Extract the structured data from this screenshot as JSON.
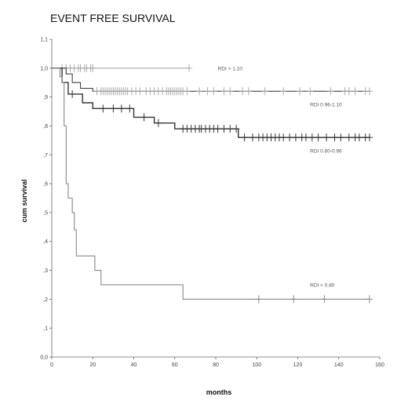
{
  "chart_data": {
    "type": "line",
    "title": "EVENT FREE SURVIVAL",
    "xlabel": "months",
    "ylabel": "cum survival",
    "xlim": [
      0,
      160
    ],
    "ylim": [
      0,
      1.1
    ],
    "x_ticks": [
      0,
      20,
      40,
      60,
      80,
      100,
      120,
      140,
      160
    ],
    "x_tick_labels": [
      "0",
      "20",
      "40",
      "60",
      "80",
      "100",
      "120",
      "140",
      "160"
    ],
    "y_ticks": [
      0,
      0.1,
      0.2,
      0.3,
      0.4,
      0.5,
      0.6,
      0.7,
      0.8,
      0.9,
      1.0,
      1.1
    ],
    "y_tick_labels": [
      "0,0",
      ",1",
      ",2",
      ",3",
      ",4",
      ",5",
      ",6",
      ",7",
      ",8",
      ",9",
      "1,0",
      "1,1"
    ],
    "grid": false,
    "series": [
      {
        "name": "RDI > 1.10",
        "color": "#aaaaaa",
        "steps": [
          [
            0,
            1.0
          ],
          [
            67,
            1.0
          ]
        ],
        "censored": [
          5,
          7,
          9,
          11,
          13,
          14,
          16,
          17,
          19,
          20,
          67
        ]
      },
      {
        "name": "RDI 0.96-1.10",
        "color": "#444444",
        "steps": [
          [
            0,
            1.0
          ],
          [
            7,
            1.0
          ],
          [
            7,
            0.98
          ],
          [
            10,
            0.98
          ],
          [
            10,
            0.95
          ],
          [
            14,
            0.95
          ],
          [
            14,
            0.93
          ],
          [
            20,
            0.93
          ],
          [
            20,
            0.92
          ],
          [
            155,
            0.92
          ]
        ],
        "censored": [
          22,
          24,
          25,
          26,
          27,
          28,
          29,
          30,
          31,
          32,
          33,
          34,
          35,
          36,
          37,
          39,
          41,
          43,
          46,
          48,
          50,
          52,
          54,
          56,
          57,
          58,
          59,
          60,
          61,
          62,
          63,
          64,
          66,
          72,
          76,
          79,
          84,
          87,
          93,
          96,
          104,
          113,
          121,
          126,
          136,
          143,
          145,
          148,
          153,
          155
        ],
        "censored_color": "#aaaaaa"
      },
      {
        "name": "RDI 0.80-0.96",
        "color": "#333333",
        "steps": [
          [
            0,
            1.0
          ],
          [
            5,
            1.0
          ],
          [
            5,
            0.95
          ],
          [
            8,
            0.95
          ],
          [
            8,
            0.91
          ],
          [
            15,
            0.91
          ],
          [
            15,
            0.88
          ],
          [
            20,
            0.88
          ],
          [
            20,
            0.86
          ],
          [
            40,
            0.86
          ],
          [
            40,
            0.83
          ],
          [
            50,
            0.83
          ],
          [
            50,
            0.81
          ],
          [
            60,
            0.81
          ],
          [
            60,
            0.79
          ],
          [
            91,
            0.79
          ],
          [
            91,
            0.76
          ],
          [
            155,
            0.76
          ]
        ],
        "censored": [
          10,
          25,
          30,
          34,
          38,
          45,
          52,
          64,
          66,
          68,
          70,
          72,
          73,
          75,
          77,
          79,
          81,
          84,
          87,
          90,
          94,
          98,
          101,
          103,
          105,
          107,
          109,
          111,
          113,
          116,
          119,
          122,
          124,
          127,
          130,
          134,
          138,
          141,
          145,
          148,
          150,
          153,
          155
        ]
      },
      {
        "name": "RDI < 0.80",
        "color": "#888888",
        "steps": [
          [
            0,
            1.0
          ],
          [
            4,
            1.0
          ],
          [
            4,
            0.97
          ],
          [
            5,
            0.97
          ],
          [
            5,
            0.95
          ],
          [
            6,
            0.95
          ],
          [
            6,
            0.8
          ],
          [
            7,
            0.8
          ],
          [
            7,
            0.6
          ],
          [
            8,
            0.6
          ],
          [
            8,
            0.55
          ],
          [
            10,
            0.55
          ],
          [
            10,
            0.5
          ],
          [
            11,
            0.5
          ],
          [
            11,
            0.44
          ],
          [
            12,
            0.44
          ],
          [
            12,
            0.35
          ],
          [
            21,
            0.35
          ],
          [
            21,
            0.3
          ],
          [
            24,
            0.3
          ],
          [
            24,
            0.25
          ],
          [
            64,
            0.25
          ],
          [
            64,
            0.2
          ],
          [
            155,
            0.2
          ]
        ],
        "censored": [
          101,
          118,
          133,
          155
        ]
      }
    ],
    "series_labels": [
      {
        "text": "RDI > 1.10",
        "x": 81,
        "y": 1.0
      },
      {
        "text": "RDI 0.96-1.10",
        "x": 126,
        "y": 0.875
      },
      {
        "text": "RDI 0.80-0.96",
        "x": 126,
        "y": 0.715
      },
      {
        "text": "RDI < 0.80",
        "x": 126,
        "y": 0.25
      }
    ]
  }
}
